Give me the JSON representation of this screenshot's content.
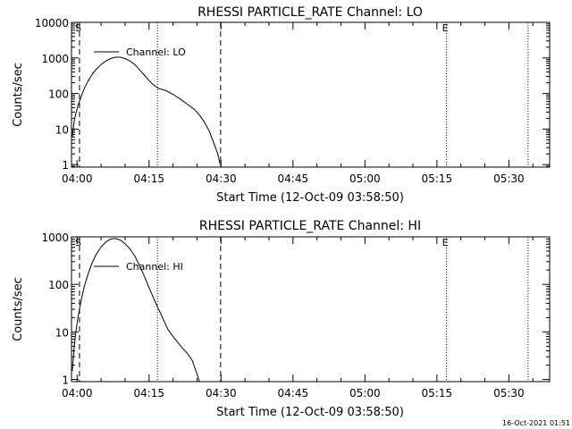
{
  "footer": {
    "date_stamp": "16-Oct-2021 01:51"
  },
  "chart_data": [
    {
      "type": "line",
      "title": "RHESSI PARTICLE_RATE Channel: LO",
      "xlabel": "Start Time (12-Oct-09 03:58:50)",
      "ylabel": "Counts/sec",
      "yscale": "log",
      "xlim": [
        "03:58:50",
        "05:38:30"
      ],
      "ylim": [
        0.85,
        10000
      ],
      "xticks": [
        "04:00",
        "04:15",
        "04:30",
        "04:45",
        "05:00",
        "05:15",
        "05:30"
      ],
      "yticks": [
        {
          "value": 1,
          "label": "1"
        },
        {
          "value": 10,
          "label": "10"
        },
        {
          "value": 100,
          "label": "100"
        },
        {
          "value": 1000,
          "label": "1000"
        },
        {
          "value": 10000,
          "label": "10000"
        }
      ],
      "legend": {
        "label": "Channel: LO",
        "placement": "top-left"
      },
      "markers": [
        {
          "time": "04:00:30",
          "style": "dashed",
          "label": "S"
        },
        {
          "time": "04:16:45",
          "style": "dotted",
          "label": ""
        },
        {
          "time": "04:29:55",
          "style": "dashed",
          "label": ""
        },
        {
          "time": "05:17:00",
          "style": "dotted",
          "label": "E"
        },
        {
          "time": "05:34:00",
          "style": "dotted",
          "label": ""
        }
      ],
      "series": [
        {
          "x": [
            "03:59:00",
            "03:59:20",
            "03:59:40",
            "04:00:10",
            "04:00:50",
            "04:01:30",
            "04:02:20",
            "04:03:10",
            "04:04:00",
            "04:05:00",
            "04:06:00",
            "04:07:00",
            "04:08:00",
            "04:09:00",
            "04:10:00",
            "04:11:00",
            "04:12:00",
            "04:13:00",
            "04:14:00",
            "04:15:00",
            "04:16:00",
            "04:17:00",
            "04:18:30",
            "04:20:00",
            "04:21:30",
            "04:23:00",
            "04:24:30",
            "04:25:30",
            "04:26:30",
            "04:27:30",
            "04:28:30",
            "04:29:20",
            "04:29:50"
          ],
          "y": [
            6,
            15,
            25,
            45,
            80,
            140,
            230,
            350,
            480,
            650,
            820,
            960,
            1050,
            1050,
            960,
            830,
            650,
            470,
            330,
            230,
            170,
            140,
            120,
            95,
            70,
            50,
            35,
            25,
            16,
            9,
            4,
            2,
            1
          ]
        }
      ]
    },
    {
      "type": "line",
      "title": "RHESSI PARTICLE_RATE Channel: HI",
      "xlabel": "Start Time (12-Oct-09 03:58:50)",
      "ylabel": "Counts/sec",
      "yscale": "log",
      "xlim": [
        "03:58:50",
        "05:38:30"
      ],
      "ylim": [
        0.9,
        1000
      ],
      "xticks": [
        "04:00",
        "04:15",
        "04:30",
        "04:45",
        "05:00",
        "05:15",
        "05:30"
      ],
      "yticks": [
        {
          "value": 1,
          "label": "1"
        },
        {
          "value": 10,
          "label": "10"
        },
        {
          "value": 100,
          "label": "100"
        },
        {
          "value": 1000,
          "label": "1000"
        }
      ],
      "legend": {
        "label": "Channel: HI",
        "placement": "top-left"
      },
      "markers": [
        {
          "time": "04:00:30",
          "style": "dashed",
          "label": "S"
        },
        {
          "time": "04:16:45",
          "style": "dotted",
          "label": ""
        },
        {
          "time": "04:29:55",
          "style": "dashed",
          "label": ""
        },
        {
          "time": "05:17:00",
          "style": "dotted",
          "label": "E"
        },
        {
          "time": "05:34:00",
          "style": "dotted",
          "label": ""
        }
      ],
      "series": [
        {
          "x": [
            "03:59:00",
            "03:59:20",
            "03:59:40",
            "04:00:10",
            "04:00:50",
            "04:01:30",
            "04:02:20",
            "04:03:10",
            "04:04:00",
            "04:05:00",
            "04:06:00",
            "04:07:00",
            "04:08:00",
            "04:09:00",
            "04:10:00",
            "04:11:00",
            "04:12:00",
            "04:13:00",
            "04:14:00",
            "04:15:00",
            "04:16:00",
            "04:17:00",
            "04:18:00",
            "04:19:00",
            "04:20:00",
            "04:21:00",
            "04:22:00",
            "04:23:00",
            "04:24:00",
            "04:24:30",
            "04:25:00",
            "04:25:30"
          ],
          "y": [
            1.5,
            4,
            9,
            20,
            45,
            90,
            170,
            290,
            430,
            610,
            780,
            900,
            920,
            860,
            720,
            560,
            400,
            250,
            150,
            85,
            50,
            30,
            18,
            11,
            8,
            6,
            4.5,
            3.5,
            2.5,
            1.8,
            1.3,
            0.9
          ]
        }
      ]
    }
  ]
}
